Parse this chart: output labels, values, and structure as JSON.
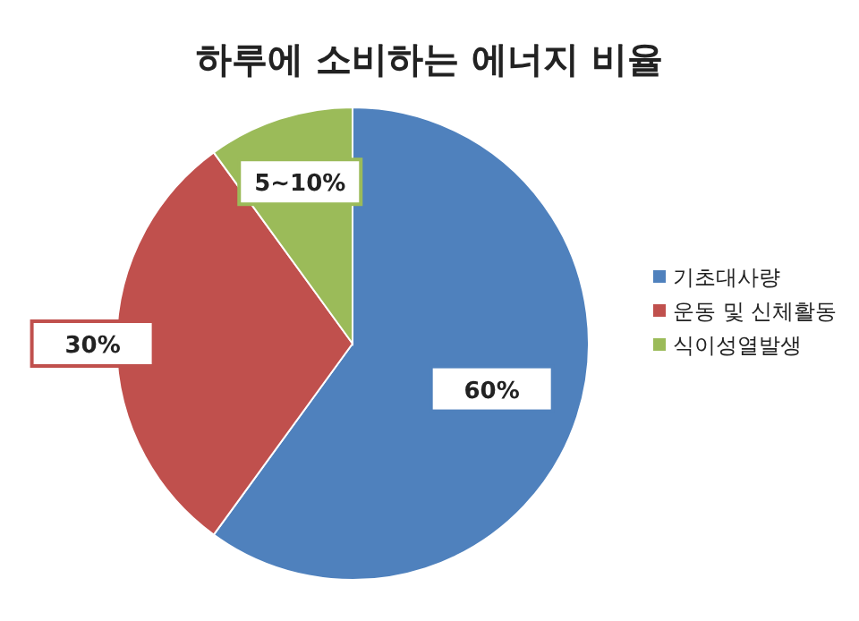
{
  "chart_data": {
    "type": "pie",
    "title": "하루에 소비하는 에너지 비율",
    "categories": [
      "기초대사량",
      "운동 및 신체활동",
      "식이성열발생"
    ],
    "values": [
      60,
      30,
      10
    ],
    "value_labels": [
      "60%",
      "30%",
      "5~10%"
    ],
    "colors": [
      "#4f81bd",
      "#c0504d",
      "#9bbb59"
    ],
    "legend": "right"
  }
}
